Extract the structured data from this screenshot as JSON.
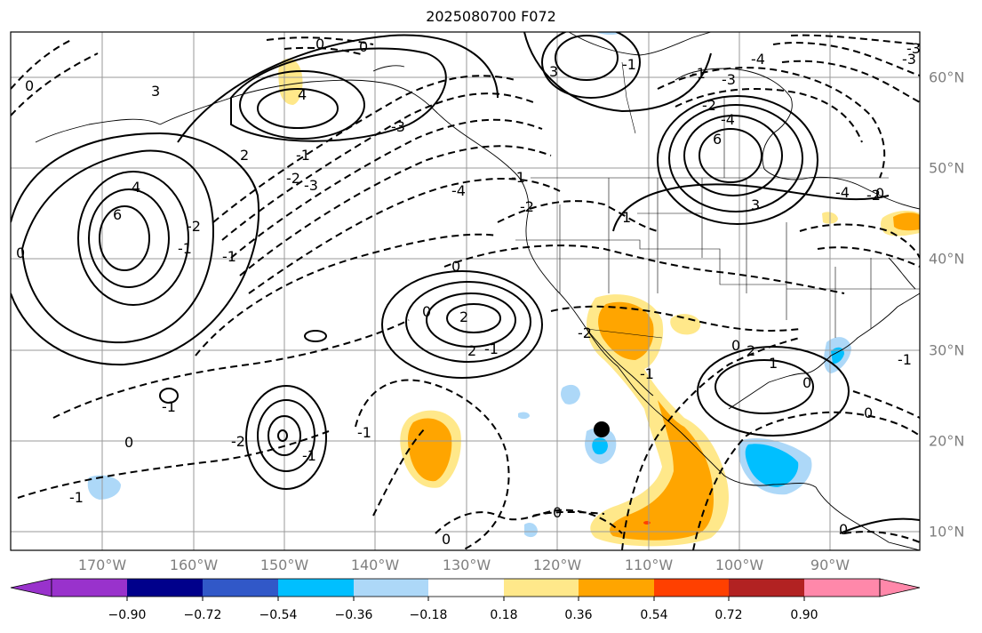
{
  "title": "2025080700 F072",
  "lon_labels": [
    "170°W",
    "160°W",
    "150°W",
    "140°W",
    "130°W",
    "120°W",
    "110°W",
    "100°W",
    "90°W"
  ],
  "lat_labels": [
    "60°N",
    "50°N",
    "40°N",
    "30°N",
    "20°N",
    "10°N"
  ],
  "contour_labels": [
    "0",
    "4",
    "6",
    "0",
    "3",
    "0",
    "4",
    "-3",
    "-4",
    "-3",
    "0",
    "3",
    "6",
    "-4",
    "3",
    "-2",
    "-1",
    "2",
    "-2",
    "1",
    "-1",
    "-3",
    "-4",
    "0",
    "2",
    "-2",
    "-3",
    "-4",
    "0",
    "-2",
    "-2",
    "-1",
    "0",
    "-1",
    "2",
    "0",
    "-2",
    "-1",
    "-1",
    "1",
    "-1",
    "0",
    "-1",
    "2",
    "0",
    "-1",
    "-1",
    "-1",
    "0",
    "0",
    "-1",
    "0",
    "0",
    "-3",
    "-1",
    "-2"
  ],
  "colorbar": {
    "tick_labels": [
      "−0.90",
      "−0.72",
      "−0.54",
      "−0.36",
      "−0.18",
      "0.18",
      "0.36",
      "0.54",
      "0.72",
      "0.90"
    ],
    "colors": [
      "#9932cc",
      "#00008b",
      "#3158c8",
      "#00bfff",
      "#add8f8",
      "#ffffff",
      "#ffe88a",
      "#ffa500",
      "#ff4000",
      "#b22222",
      "#ff88aa"
    ]
  },
  "marker": "storm-center-dot"
}
